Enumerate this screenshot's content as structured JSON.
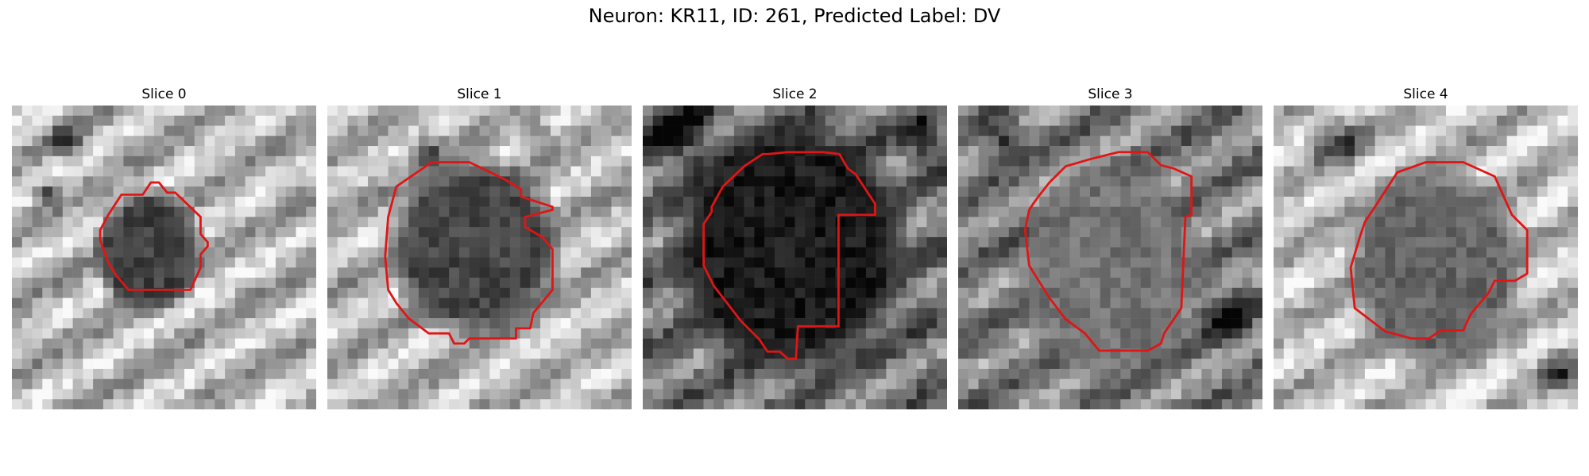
{
  "figure": {
    "title": "Neuron: KR11, ID: 261, Predicted Label: DV",
    "contour_color": "#e01515"
  },
  "slices": [
    {
      "title": "Slice 0"
    },
    {
      "title": "Slice 1"
    },
    {
      "title": "Slice 2"
    },
    {
      "title": "Slice 3"
    },
    {
      "title": "Slice 4"
    }
  ]
}
